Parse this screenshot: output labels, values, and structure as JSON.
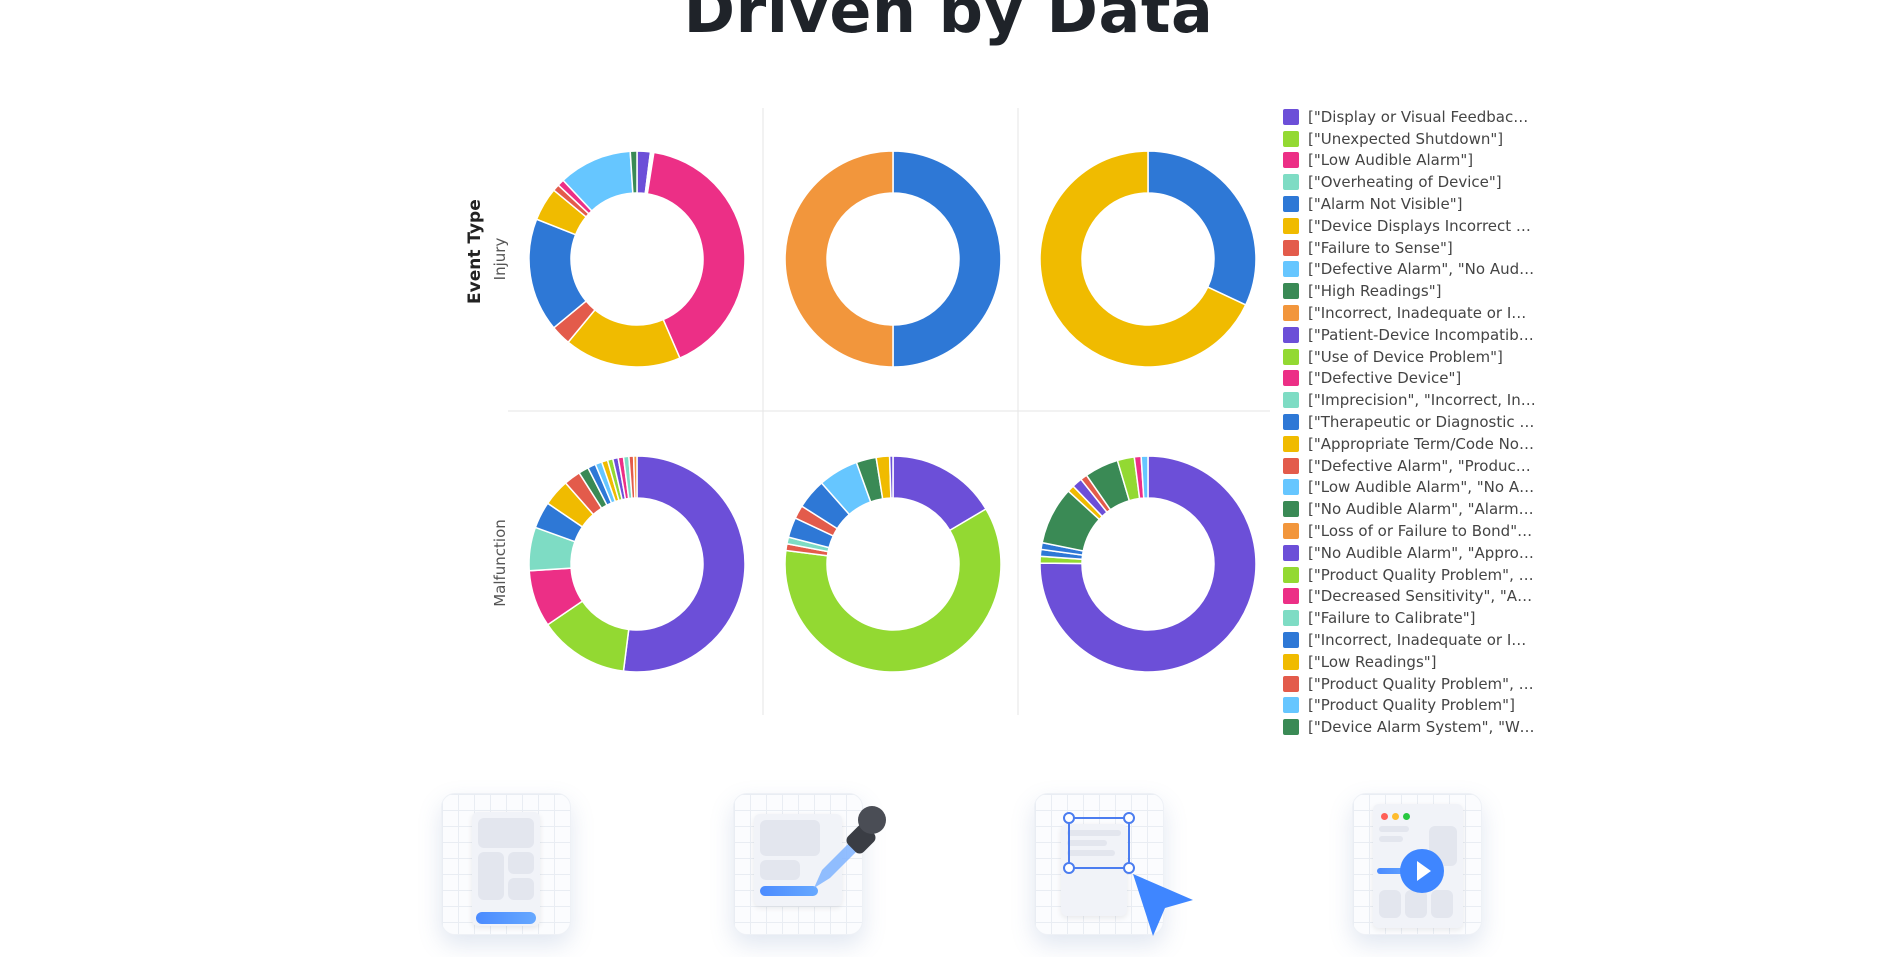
{
  "page": {
    "title": "Driven by Data"
  },
  "chart_data": {
    "type": "pie",
    "subtype": "donut",
    "facet_row_title": "Event Type",
    "rows": [
      "Injury",
      "Malfunction"
    ],
    "columns": 3,
    "legend_placement": "right",
    "legend": [
      {
        "label": "[\"Display or Visual Feedback…",
        "color": "#6c4fd8"
      },
      {
        "label": "[\"Unexpected Shutdown\"]",
        "color": "#93d932"
      },
      {
        "label": "[\"Low Audible Alarm\"]",
        "color": "#ec2f86"
      },
      {
        "label": "[\"Overheating of Device\"]",
        "color": "#7edcc4"
      },
      {
        "label": "[\"Alarm Not Visible\"]",
        "color": "#2e78d6"
      },
      {
        "label": "[\"Device Displays Incorrect …",
        "color": "#f0bb00"
      },
      {
        "label": "[\"Failure to Sense\"]",
        "color": "#e35b4b"
      },
      {
        "label": "[\"Defective Alarm\", \"No Audi…",
        "color": "#66c6ff"
      },
      {
        "label": "[\"High Readings\"]",
        "color": "#3a8a55"
      },
      {
        "label": "[\"Incorrect, Inadequate or Im…",
        "color": "#f2963c"
      },
      {
        "label": "[\"Patient-Device Incompatibi…",
        "color": "#6c4fd8"
      },
      {
        "label": "[\"Use of Device Problem\"]",
        "color": "#93d932"
      },
      {
        "label": "[\"Defective Device\"]",
        "color": "#ec2f86"
      },
      {
        "label": "[\"Imprecision\", \"Incorrect, In…",
        "color": "#7edcc4"
      },
      {
        "label": "[\"Therapeutic or Diagnostic …",
        "color": "#2e78d6"
      },
      {
        "label": "[\"Appropriate Term/Code No…",
        "color": "#f0bb00"
      },
      {
        "label": "[\"Defective Alarm\", \"Product …",
        "color": "#e35b4b"
      },
      {
        "label": "[\"Low Audible Alarm\", \"No A…",
        "color": "#66c6ff"
      },
      {
        "label": "[\"No Audible Alarm\", \"Alarm …",
        "color": "#3a8a55"
      },
      {
        "label": "[\"Loss of or Failure to Bond\",…",
        "color": "#f2963c"
      },
      {
        "label": "[\"No Audible Alarm\", \"Approp…",
        "color": "#6c4fd8"
      },
      {
        "label": "[\"Product Quality Problem\", \"…",
        "color": "#93d932"
      },
      {
        "label": "[\"Decreased Sensitivity\", \"Ap…",
        "color": "#ec2f86"
      },
      {
        "label": "[\"Failure to Calibrate\"]",
        "color": "#7edcc4"
      },
      {
        "label": "[\"Incorrect, Inadequate or Im…",
        "color": "#2e78d6"
      },
      {
        "label": "[\"Low Readings\"]",
        "color": "#f0bb00"
      },
      {
        "label": "[\"Product Quality Problem\", \"…",
        "color": "#e35b4b"
      },
      {
        "label": "[\"Product Quality Problem\"]",
        "color": "#66c6ff"
      },
      {
        "label": "[\"Device Alarm System\", \"Wir…",
        "color": "#3a8a55"
      }
    ],
    "panels": [
      {
        "row": "Injury",
        "column": 1,
        "slices": [
          {
            "color": "#6c4fd8",
            "value": 2.0
          },
          {
            "color": "#ffffff",
            "value": 0.5
          },
          {
            "color": "#ec2f86",
            "value": 41.0
          },
          {
            "color": "#f0bb00",
            "value": 17.5
          },
          {
            "color": "#e35b4b",
            "value": 3.0
          },
          {
            "color": "#2e78d6",
            "value": 17.0
          },
          {
            "color": "#f0bb00",
            "value": 5.0
          },
          {
            "color": "#e35b4b",
            "value": 1.0
          },
          {
            "color": "#ec2f86",
            "value": 1.0
          },
          {
            "color": "#66c6ff",
            "value": 11.0
          },
          {
            "color": "#3a8a55",
            "value": 1.0
          }
        ]
      },
      {
        "row": "Injury",
        "column": 2,
        "slices": [
          {
            "color": "#2e78d6",
            "value": 50
          },
          {
            "color": "#f2963c",
            "value": 50
          }
        ]
      },
      {
        "row": "Injury",
        "column": 3,
        "slices": [
          {
            "color": "#2e78d6",
            "value": 32
          },
          {
            "color": "#f0bb00",
            "value": 68
          }
        ]
      },
      {
        "row": "Malfunction",
        "column": 1,
        "slices": [
          {
            "color": "#6c4fd8",
            "value": 52.0
          },
          {
            "color": "#93d932",
            "value": 13.5
          },
          {
            "color": "#ec2f86",
            "value": 8.5
          },
          {
            "color": "#7edcc4",
            "value": 6.5
          },
          {
            "color": "#2e78d6",
            "value": 4.0
          },
          {
            "color": "#f0bb00",
            "value": 4.0
          },
          {
            "color": "#e35b4b",
            "value": 2.5
          },
          {
            "color": "#3a8a55",
            "value": 1.5
          },
          {
            "color": "#2e78d6",
            "value": 1.2
          },
          {
            "color": "#66c6ff",
            "value": 1.0
          },
          {
            "color": "#f0bb00",
            "value": 0.9
          },
          {
            "color": "#93d932",
            "value": 0.8
          },
          {
            "color": "#6c4fd8",
            "value": 0.8
          },
          {
            "color": "#ec2f86",
            "value": 0.8
          },
          {
            "color": "#7edcc4",
            "value": 0.8
          },
          {
            "color": "#e35b4b",
            "value": 0.7
          },
          {
            "color": "#f2963c",
            "value": 0.5
          }
        ]
      },
      {
        "row": "Malfunction",
        "column": 2,
        "slices": [
          {
            "color": "#6c4fd8",
            "value": 16.5
          },
          {
            "color": "#93d932",
            "value": 60.5
          },
          {
            "color": "#e35b4b",
            "value": 1.0
          },
          {
            "color": "#7edcc4",
            "value": 1.0
          },
          {
            "color": "#2e78d6",
            "value": 3.0
          },
          {
            "color": "#e35b4b",
            "value": 2.0
          },
          {
            "color": "#2e78d6",
            "value": 4.5
          },
          {
            "color": "#66c6ff",
            "value": 6.0
          },
          {
            "color": "#3a8a55",
            "value": 3.0
          },
          {
            "color": "#f0bb00",
            "value": 2.0
          },
          {
            "color": "#6c4fd8",
            "value": 0.5
          }
        ]
      },
      {
        "row": "Malfunction",
        "column": 3,
        "slices": [
          {
            "color": "#6c4fd8",
            "value": 74.0
          },
          {
            "color": "#93d932",
            "value": 1.0
          },
          {
            "color": "#2e78d6",
            "value": 1.0
          },
          {
            "color": "#2e78d6",
            "value": 1.0
          },
          {
            "color": "#3a8a55",
            "value": 8.5
          },
          {
            "color": "#f0bb00",
            "value": 1.0
          },
          {
            "color": "#6c4fd8",
            "value": 1.5
          },
          {
            "color": "#e35b4b",
            "value": 1.0
          },
          {
            "color": "#3a8a55",
            "value": 5.0
          },
          {
            "color": "#93d932",
            "value": 2.5
          },
          {
            "color": "#ec2f86",
            "value": 1.0
          },
          {
            "color": "#66c6ff",
            "value": 1.0
          }
        ]
      }
    ]
  },
  "features": [
    {
      "icon": "layout-icon"
    },
    {
      "icon": "color-picker-icon"
    },
    {
      "icon": "select-cursor-icon"
    },
    {
      "icon": "video-player-icon"
    }
  ]
}
